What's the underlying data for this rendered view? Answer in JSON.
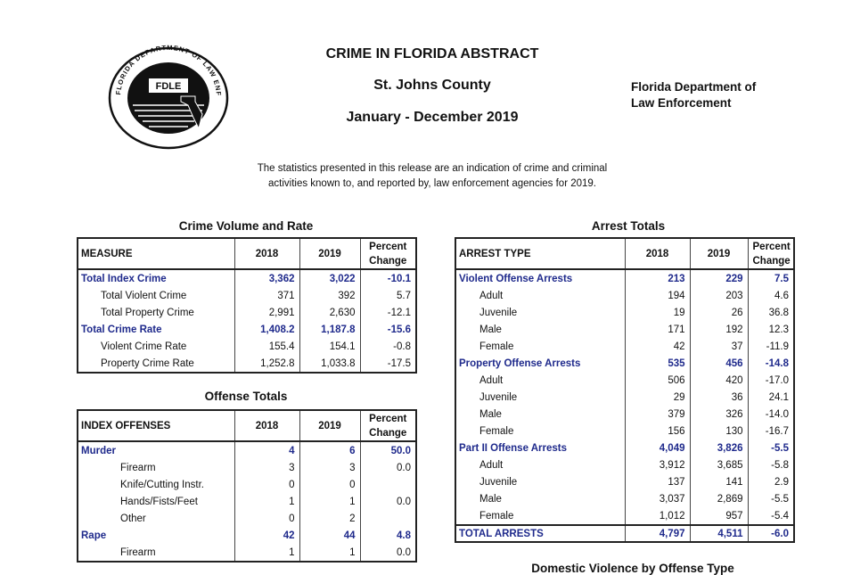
{
  "header": {
    "title": "CRIME IN FLORIDA ABSTRACT",
    "county": "St. Johns County",
    "period": "January - December 2019",
    "agency": [
      "Florida Department of",
      "Law Enforcement"
    ],
    "logo": {
      "text": "FDLE",
      "ring": "FLORIDA DEPARTMENT OF LAW ENFORCEMENT"
    },
    "intro": [
      "The statistics presented in this release are an indication of crime and criminal",
      "activities known to, and reported by, law enforcement agencies for 2019."
    ]
  },
  "tables": [
    {
      "title": "Crime Volume and Rate",
      "header": [
        "MEASURE",
        "2018",
        "2019",
        "Percent Change"
      ],
      "groups": [
        {
          "cells": [
            "Total Index Crime",
            "3,362",
            "3,022",
            "-10.1"
          ],
          "rows": [
            [
              "Total Violent Crime",
              "371",
              "392",
              "5.7"
            ],
            [
              "Total Property Crime",
              "2,991",
              "2,630",
              "-12.1"
            ]
          ]
        },
        {
          "cells": [
            "Total Crime Rate",
            "1,408.2",
            "1,187.8",
            "-15.6"
          ],
          "rows": [
            [
              "Violent Crime Rate",
              "155.4",
              "154.1",
              "-0.8"
            ],
            [
              "Property Crime Rate",
              "1,252.8",
              "1,033.8",
              "-17.5"
            ]
          ]
        }
      ]
    },
    {
      "title": "Offense Totals",
      "header": [
        "INDEX OFFENSES",
        "2018",
        "2019",
        "Percent Change"
      ],
      "groups": [
        {
          "cells": [
            "Murder",
            "4",
            "6",
            "50.0"
          ],
          "rows": [
            [
              "Firearm",
              "3",
              "3",
              "0.0"
            ],
            [
              "Knife/Cutting Instr.",
              "0",
              "0",
              null
            ],
            [
              "Hands/Fists/Feet",
              "1",
              "1",
              "0.0"
            ],
            [
              "Other",
              "0",
              "2",
              null
            ]
          ]
        },
        {
          "cells": [
            "Rape",
            "42",
            "44",
            "4.8"
          ],
          "rows": [
            [
              "Firearm",
              "1",
              "1",
              "0.0"
            ]
          ]
        }
      ]
    },
    {
      "title": "Arrest Totals",
      "header": [
        "ARREST TYPE",
        "2018",
        "2019",
        "Percent Change"
      ],
      "groups": [
        {
          "cells": [
            "Violent Offense Arrests",
            "213",
            "229",
            "7.5"
          ],
          "rows": [
            [
              "Adult",
              "194",
              "203",
              "4.6"
            ],
            [
              "Juvenile",
              "19",
              "26",
              "36.8"
            ],
            [
              "Male",
              "171",
              "192",
              "12.3"
            ],
            [
              "Female",
              "42",
              "37",
              "-11.9"
            ]
          ]
        },
        {
          "cells": [
            "Property Offense Arrests",
            "535",
            "456",
            "-14.8"
          ],
          "rows": [
            [
              "Adult",
              "506",
              "420",
              "-17.0"
            ],
            [
              "Juvenile",
              "29",
              "36",
              "24.1"
            ],
            [
              "Male",
              "379",
              "326",
              "-14.0"
            ],
            [
              "Female",
              "156",
              "130",
              "-16.7"
            ]
          ]
        },
        {
          "cells": [
            "Part II Offense Arrests",
            "4,049",
            "3,826",
            "-5.5"
          ],
          "rows": [
            [
              "Adult",
              "3,912",
              "3,685",
              "-5.8"
            ],
            [
              "Juvenile",
              "137",
              "141",
              "2.9"
            ],
            [
              "Male",
              "3,037",
              "2,869",
              "-5.5"
            ],
            [
              "Female",
              "1,012",
              "957",
              "-5.4"
            ]
          ]
        }
      ],
      "total": [
        "TOTAL ARRESTS",
        "4,797",
        "4,511",
        "-6.0"
      ]
    },
    {
      "title": "Domestic Violence by Offense Type"
    }
  ]
}
